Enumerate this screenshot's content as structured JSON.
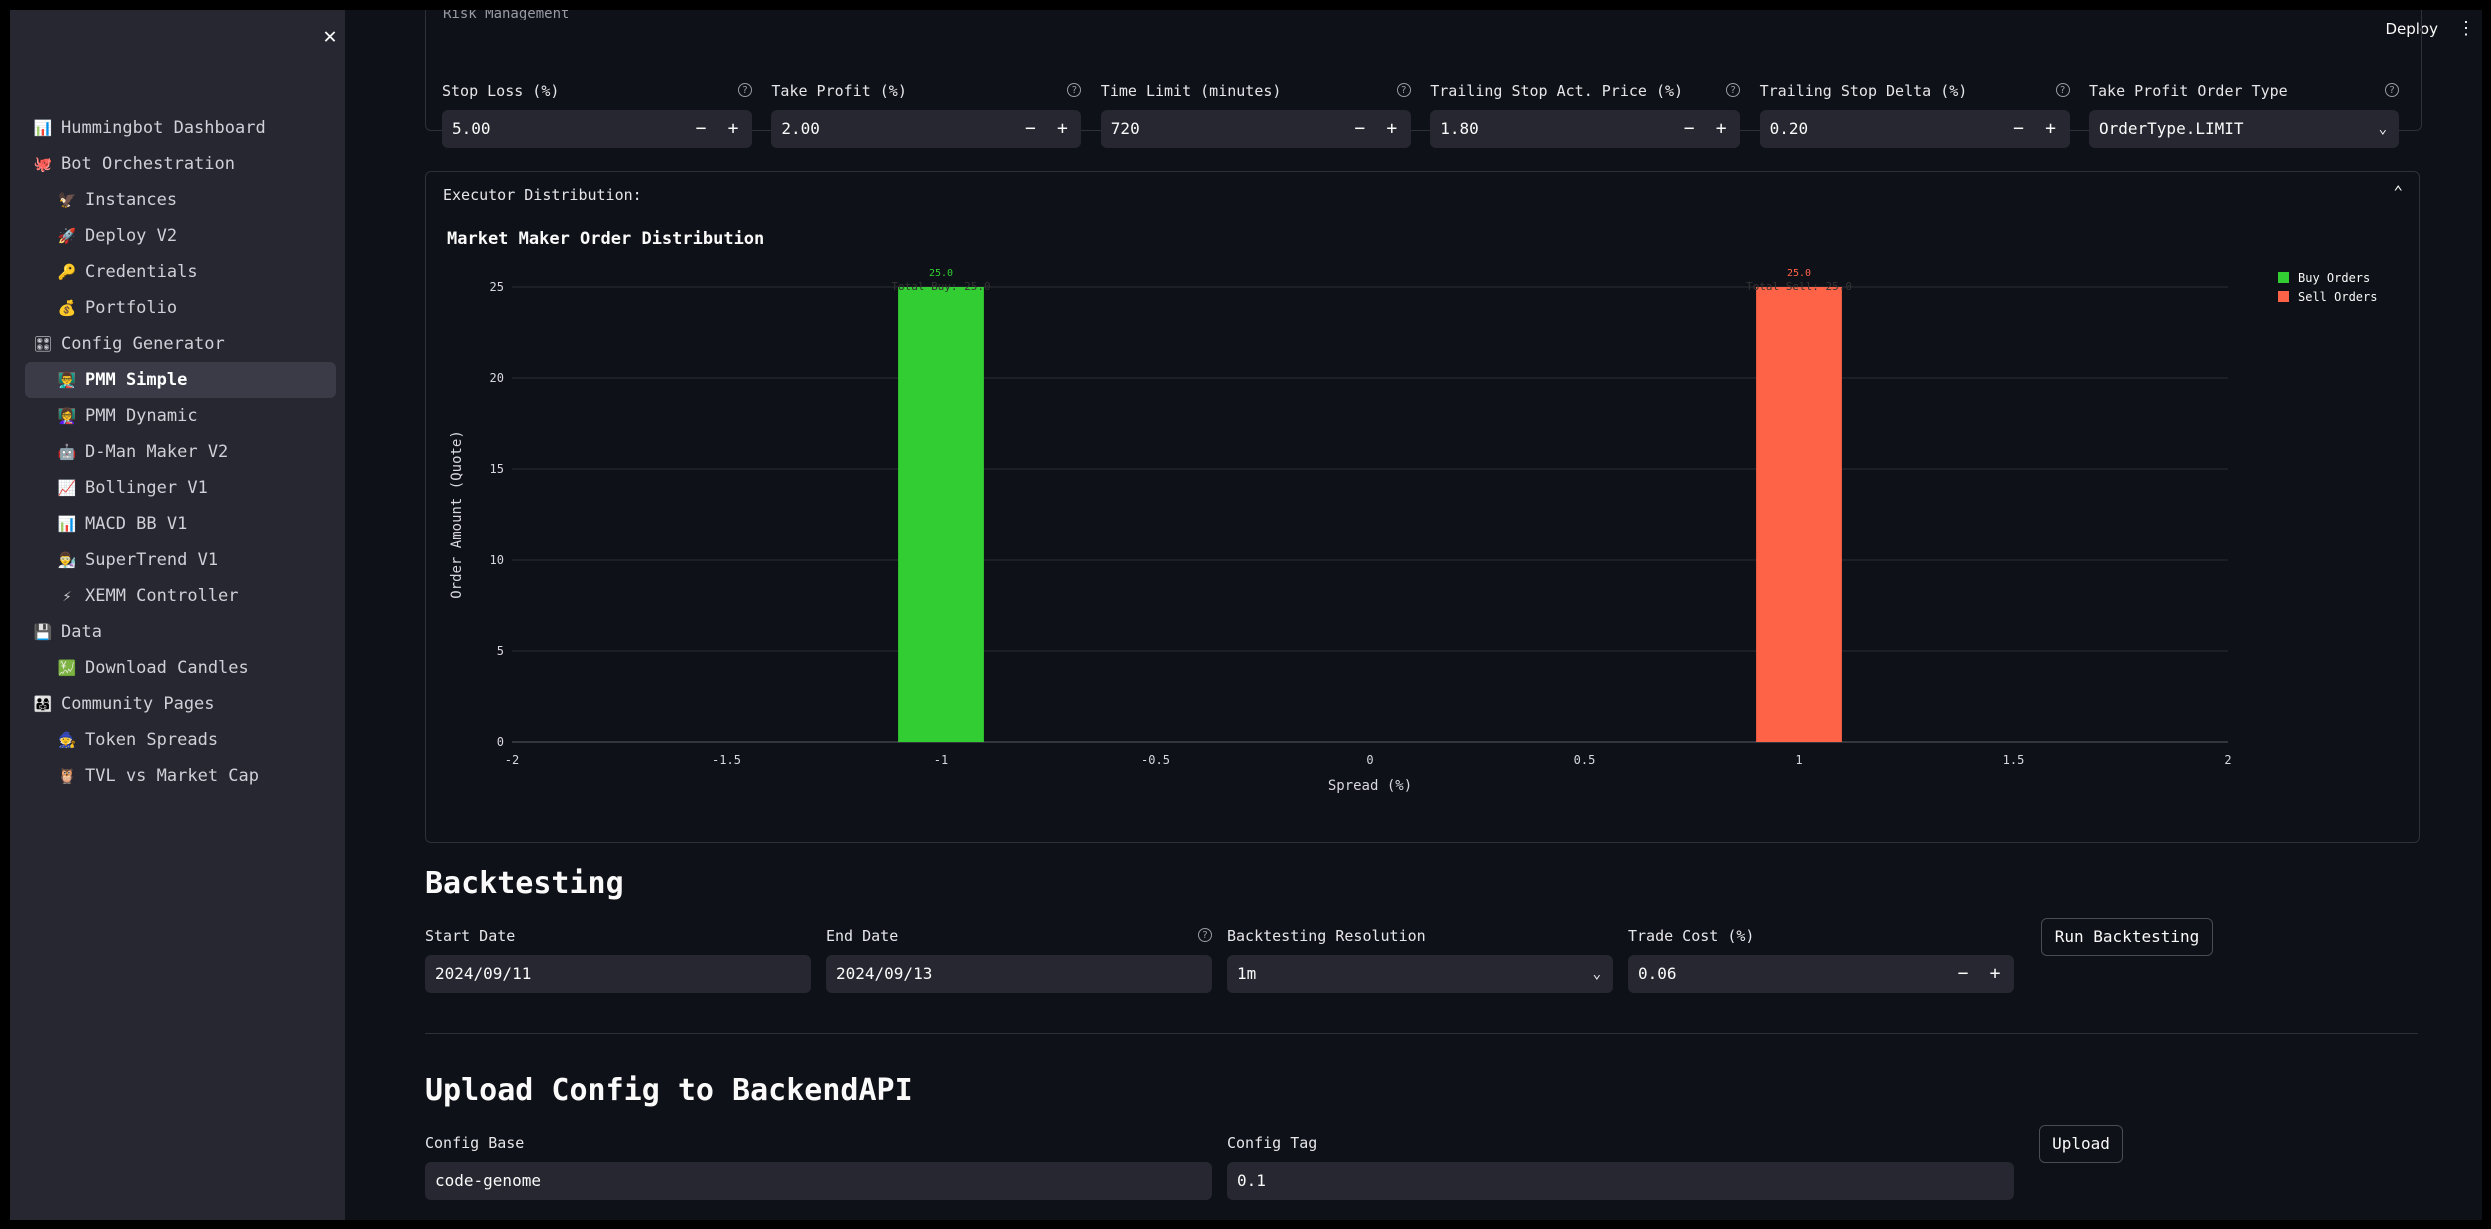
{
  "header": {
    "deploy_label": "Deploy",
    "menu_glyph": "⋮",
    "close_glyph": "✕"
  },
  "sidebar": {
    "items": [
      {
        "label": "Hummingbot Dashboard",
        "icon": "📊",
        "icon_name": "dashboard-icon",
        "level": 1
      },
      {
        "label": "Bot Orchestration",
        "icon": "🐙",
        "icon_name": "octopus-icon",
        "level": 1
      },
      {
        "label": "Instances",
        "icon": "🦅",
        "icon_name": "eagle-icon",
        "level": 2
      },
      {
        "label": "Deploy V2",
        "icon": "🚀",
        "icon_name": "rocket-icon",
        "level": 2
      },
      {
        "label": "Credentials",
        "icon": "🔑",
        "icon_name": "key-icon",
        "level": 2
      },
      {
        "label": "Portfolio",
        "icon": "💰",
        "icon_name": "money-bag-icon",
        "level": 2
      },
      {
        "label": "Config Generator",
        "icon": "🎛",
        "icon_name": "control-knobs-icon",
        "level": 1
      },
      {
        "label": "PMM Simple",
        "icon": "👨‍🏫",
        "icon_name": "teacher-icon",
        "level": 2,
        "active": true
      },
      {
        "label": "PMM Dynamic",
        "icon": "👩‍🏫",
        "icon_name": "teacher-icon",
        "level": 2
      },
      {
        "label": "D-Man Maker V2",
        "icon": "🤖",
        "icon_name": "robot-icon",
        "level": 2
      },
      {
        "label": "Bollinger V1",
        "icon": "📈",
        "icon_name": "chart-up-icon",
        "level": 2
      },
      {
        "label": "MACD BB V1",
        "icon": "📊",
        "icon_name": "bar-chart-icon",
        "level": 2
      },
      {
        "label": "SuperTrend V1",
        "icon": "👨‍🔬",
        "icon_name": "scientist-icon",
        "level": 2
      },
      {
        "label": "XEMM Controller",
        "icon": "⚡",
        "icon_name": "lightning-icon",
        "level": 2
      },
      {
        "label": "Data",
        "icon": "💾",
        "icon_name": "floppy-disk-icon",
        "level": 1
      },
      {
        "label": "Download Candles",
        "icon": "💹",
        "icon_name": "chart-yen-icon",
        "level": 2
      },
      {
        "label": "Community Pages",
        "icon": "👨‍👩‍👧",
        "icon_name": "community-icon",
        "level": 1
      },
      {
        "label": "Token Spreads",
        "icon": "🧙",
        "icon_name": "mage-icon",
        "level": 2
      },
      {
        "label": "TVL vs Market Cap",
        "icon": "🦉",
        "icon_name": "owl-icon",
        "level": 2
      }
    ]
  },
  "risk_management": {
    "title": "Risk Management",
    "fields": [
      {
        "label": "Stop Loss (%)",
        "value": "5.00",
        "type": "number"
      },
      {
        "label": "Take Profit (%)",
        "value": "2.00",
        "type": "number"
      },
      {
        "label": "Time Limit (minutes)",
        "value": "720",
        "type": "number"
      },
      {
        "label": "Trailing Stop Act. Price (%)",
        "value": "1.80",
        "type": "number"
      },
      {
        "label": "Trailing Stop Delta (%)",
        "value": "0.20",
        "type": "number"
      },
      {
        "label": "Take Profit Order Type",
        "value": "OrderType.LIMIT",
        "type": "select"
      }
    ]
  },
  "executor": {
    "title": "Executor Distribution:",
    "toggle_glyph": "⌃"
  },
  "chart_data": {
    "type": "bar",
    "title": "Market Maker Order Distribution",
    "xlabel": "Spread (%)",
    "ylabel": "Order Amount (Quote)",
    "xlim": [
      -2,
      2
    ],
    "ylim": [
      0,
      25
    ],
    "x_ticks": [
      "-2",
      "-1.5",
      "-1",
      "-0.5",
      "0",
      "0.5",
      "1",
      "1.5",
      "2"
    ],
    "y_ticks": [
      "0",
      "5",
      "10",
      "15",
      "20",
      "25"
    ],
    "grid": true,
    "legend_position": "top-right",
    "series": [
      {
        "name": "Buy Orders",
        "color": "#32cd32",
        "x": [
          -1
        ],
        "values": [
          25.0
        ],
        "labels": [
          "25.0"
        ],
        "total_label": "Total Buy: 25.0"
      },
      {
        "name": "Sell Orders",
        "color": "#ff6347",
        "x": [
          1
        ],
        "values": [
          25.0
        ],
        "labels": [
          "25.0"
        ],
        "total_label": "Total Sell: 25.0"
      }
    ]
  },
  "backtesting": {
    "heading": "Backtesting",
    "start_date": {
      "label": "Start Date",
      "value": "2024/09/11"
    },
    "end_date": {
      "label": "End Date",
      "value": "2024/09/13"
    },
    "resolution": {
      "label": "Backtesting Resolution",
      "value": "1m"
    },
    "trade_cost": {
      "label": "Trade Cost (%)",
      "value": "0.06"
    },
    "run_label": "Run Backtesting"
  },
  "upload": {
    "heading": "Upload Config to BackendAPI",
    "config_base": {
      "label": "Config Base",
      "value": "code-genome"
    },
    "config_tag": {
      "label": "Config Tag",
      "value": "0.1"
    },
    "upload_label": "Upload"
  }
}
